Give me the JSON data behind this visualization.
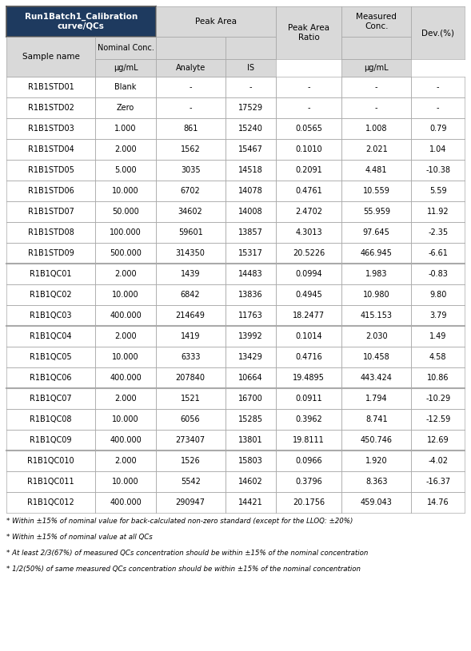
{
  "header_bg": "#1e3a5f",
  "header_fg": "#ffffff",
  "subheader_bg": "#d9d9d9",
  "row_bg_white": "#ffffff",
  "border_color": "#aaaaaa",
  "thick_border_color": "#555555",
  "rows": [
    [
      "R1B1STD01",
      "Blank",
      "-",
      "-",
      "-",
      "-",
      "-"
    ],
    [
      "R1B1STD02",
      "Zero",
      "-",
      "17529",
      "-",
      "-",
      "-"
    ],
    [
      "R1B1STD03",
      "1.000",
      "861",
      "15240",
      "0.0565",
      "1.008",
      "0.79"
    ],
    [
      "R1B1STD04",
      "2.000",
      "1562",
      "15467",
      "0.1010",
      "2.021",
      "1.04"
    ],
    [
      "R1B1STD05",
      "5.000",
      "3035",
      "14518",
      "0.2091",
      "4.481",
      "-10.38"
    ],
    [
      "R1B1STD06",
      "10.000",
      "6702",
      "14078",
      "0.4761",
      "10.559",
      "5.59"
    ],
    [
      "R1B1STD07",
      "50.000",
      "34602",
      "14008",
      "2.4702",
      "55.959",
      "11.92"
    ],
    [
      "R1B1STD08",
      "100.000",
      "59601",
      "13857",
      "4.3013",
      "97.645",
      "-2.35"
    ],
    [
      "R1B1STD09",
      "500.000",
      "314350",
      "15317",
      "20.5226",
      "466.945",
      "-6.61"
    ],
    [
      "R1B1QC01",
      "2.000",
      "1439",
      "14483",
      "0.0994",
      "1.983",
      "-0.83"
    ],
    [
      "R1B1QC02",
      "10.000",
      "6842",
      "13836",
      "0.4945",
      "10.980",
      "9.80"
    ],
    [
      "R1B1QC03",
      "400.000",
      "214649",
      "11763",
      "18.2477",
      "415.153",
      "3.79"
    ],
    [
      "R1B1QC04",
      "2.000",
      "1419",
      "13992",
      "0.1014",
      "2.030",
      "1.49"
    ],
    [
      "R1B1QC05",
      "10.000",
      "6333",
      "13429",
      "0.4716",
      "10.458",
      "4.58"
    ],
    [
      "R1B1QC06",
      "400.000",
      "207840",
      "10664",
      "19.4895",
      "443.424",
      "10.86"
    ],
    [
      "R1B1QC07",
      "2.000",
      "1521",
      "16700",
      "0.0911",
      "1.794",
      "-10.29"
    ],
    [
      "R1B1QC08",
      "10.000",
      "6056",
      "15285",
      "0.3962",
      "8.741",
      "-12.59"
    ],
    [
      "R1B1QC09",
      "400.000",
      "273407",
      "13801",
      "19.8111",
      "450.746",
      "12.69"
    ],
    [
      "R1B1QC010",
      "2.000",
      "1526",
      "15803",
      "0.0966",
      "1.920",
      "-4.02"
    ],
    [
      "R1B1QC011",
      "10.000",
      "5542",
      "14602",
      "0.3796",
      "8.363",
      "-16.37"
    ],
    [
      "R1B1QC012",
      "400.000",
      "290947",
      "14421",
      "20.1756",
      "459.043",
      "14.76"
    ]
  ],
  "qc_group_starts": [
    9,
    12,
    15,
    18
  ],
  "footnotes": [
    "* Within ±15% of nominal value for back-calculated non-zero standard (except for the LLOQ: ±20%)",
    "* Within ±15% of nominal value at all QCs",
    "* At least 2/3(67%) of measured QCs concentration should be within ±15% of the nominal concentration",
    "* 1/2(50%) of same measured QCs concentration should be within ±15% of the nominal concentration"
  ]
}
